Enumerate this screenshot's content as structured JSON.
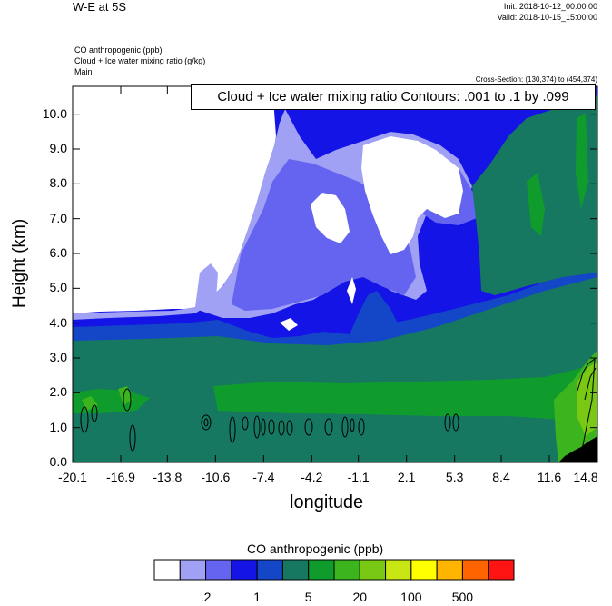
{
  "header": {
    "title": "W-E at 5S",
    "init": "Init: 2018-10-12_00:00:00",
    "valid": "Valid: 2018-10-15_15:00:00",
    "field1": "CO anthropogenic   (ppb)",
    "field2": "Cloud + Ice water mixing ratio   (g/kg)",
    "field3": "Main",
    "cross_section": "Cross-Section: (130,374) to (454,374)"
  },
  "contour_label": "Cloud + Ice water mixing ratio Contours: .001 to .1 by .099",
  "chart_data": {
    "type": "heatmap",
    "xlabel": "longitude",
    "ylabel": "Height (km)",
    "xlim": [
      -20.1,
      14.8
    ],
    "ylim": [
      0,
      10.8
    ],
    "x_ticks": [
      "-20.1",
      "-16.9",
      "-13.8",
      "-10.6",
      "-7.4",
      "-4.2",
      "-1.1",
      "2.1",
      "5.3",
      "8.4",
      "11.6",
      "14.8"
    ],
    "y_ticks": [
      "0.0",
      "1.0",
      "2.0",
      "3.0",
      "4.0",
      "5.0",
      "6.0",
      "7.0",
      "8.0",
      "9.0",
      "10.0"
    ],
    "colorbar": {
      "title": "CO anthropogenic  (ppb)",
      "labels": [
        ".2",
        "1",
        "5",
        "20",
        "100",
        "500"
      ],
      "colors": [
        "#ffffff",
        "#a0a0f5",
        "#6464f0",
        "#1414e6",
        "#1446c8",
        "#167860",
        "#109c2c",
        "#3cb41e",
        "#78c814",
        "#c8e614",
        "#ffff00",
        "#ffb400",
        "#ff6400",
        "#ff1414"
      ]
    }
  }
}
